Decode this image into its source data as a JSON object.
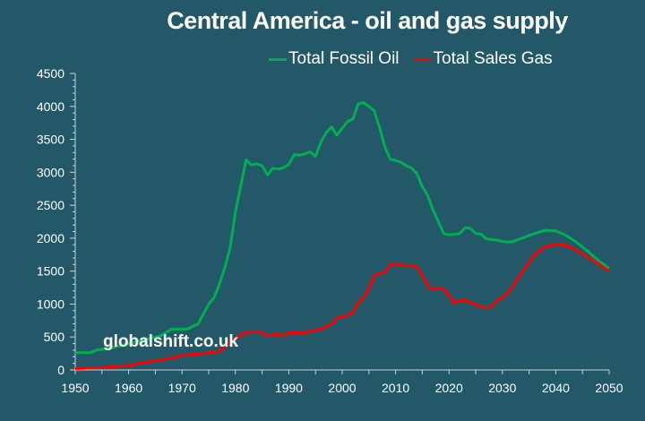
{
  "chart_data": {
    "type": "line",
    "title": "Central America - oil and gas supply",
    "xlabel": "",
    "ylabel": "",
    "xlim": [
      1950,
      2050
    ],
    "ylim": [
      0,
      4500
    ],
    "x_ticks": [
      "1950",
      "1960",
      "1970",
      "1980",
      "1990",
      "2000",
      "2010",
      "2020",
      "2030",
      "2040",
      "2050"
    ],
    "y_ticks": [
      "0",
      "500",
      "1000",
      "1500",
      "2000",
      "2500",
      "3000",
      "3500",
      "4000",
      "4500"
    ],
    "legend_position": "top-right",
    "watermark": "globalshift.co.uk",
    "series": [
      {
        "name": "Total Fossil Oil",
        "color": "#00b050",
        "points": [
          [
            1950,
            260
          ],
          [
            1953,
            265
          ],
          [
            1954,
            300
          ],
          [
            1957,
            340
          ],
          [
            1960,
            400
          ],
          [
            1963,
            460
          ],
          [
            1966,
            520
          ],
          [
            1968,
            620
          ],
          [
            1971,
            620
          ],
          [
            1973,
            700
          ],
          [
            1975,
            1000
          ],
          [
            1976,
            1100
          ],
          [
            1977,
            1300
          ],
          [
            1978,
            1550
          ],
          [
            1979,
            1850
          ],
          [
            1980,
            2400
          ],
          [
            1981,
            2800
          ],
          [
            1982,
            3190
          ],
          [
            1983,
            3110
          ],
          [
            1984,
            3130
          ],
          [
            1985,
            3100
          ],
          [
            1986,
            2960
          ],
          [
            1987,
            3060
          ],
          [
            1988,
            3050
          ],
          [
            1989,
            3070
          ],
          [
            1990,
            3120
          ],
          [
            1991,
            3270
          ],
          [
            1992,
            3260
          ],
          [
            1993,
            3280
          ],
          [
            1994,
            3310
          ],
          [
            1995,
            3240
          ],
          [
            1996,
            3460
          ],
          [
            1997,
            3600
          ],
          [
            1998,
            3690
          ],
          [
            1999,
            3560
          ],
          [
            2000,
            3670
          ],
          [
            2001,
            3770
          ],
          [
            2002,
            3810
          ],
          [
            2003,
            4040
          ],
          [
            2004,
            4060
          ],
          [
            2005,
            4000
          ],
          [
            2006,
            3930
          ],
          [
            2007,
            3680
          ],
          [
            2008,
            3380
          ],
          [
            2009,
            3200
          ],
          [
            2010,
            3180
          ],
          [
            2011,
            3150
          ],
          [
            2012,
            3100
          ],
          [
            2013,
            3060
          ],
          [
            2014,
            2980
          ],
          [
            2015,
            2780
          ],
          [
            2016,
            2650
          ],
          [
            2017,
            2430
          ],
          [
            2018,
            2250
          ],
          [
            2019,
            2070
          ],
          [
            2020,
            2050
          ],
          [
            2021,
            2060
          ],
          [
            2022,
            2070
          ],
          [
            2023,
            2160
          ],
          [
            2024,
            2150
          ],
          [
            2025,
            2070
          ],
          [
            2026,
            2060
          ],
          [
            2027,
            1990
          ],
          [
            2028,
            1980
          ],
          [
            2029,
            1970
          ],
          [
            2030,
            1950
          ],
          [
            2031,
            1940
          ],
          [
            2032,
            1950
          ],
          [
            2034,
            2010
          ],
          [
            2036,
            2070
          ],
          [
            2038,
            2120
          ],
          [
            2040,
            2110
          ],
          [
            2042,
            2040
          ],
          [
            2044,
            1930
          ],
          [
            2046,
            1800
          ],
          [
            2048,
            1660
          ],
          [
            2050,
            1540
          ]
        ]
      },
      {
        "name": "Total Sales Gas",
        "color": "#ff0000",
        "points": [
          [
            1950,
            20
          ],
          [
            1955,
            35
          ],
          [
            1960,
            70
          ],
          [
            1965,
            140
          ],
          [
            1968,
            180
          ],
          [
            1970,
            220
          ],
          [
            1973,
            240
          ],
          [
            1975,
            260
          ],
          [
            1977,
            280
          ],
          [
            1978,
            360
          ],
          [
            1980,
            480
          ],
          [
            1982,
            570
          ],
          [
            1984,
            580
          ],
          [
            1985,
            560
          ],
          [
            1986,
            520
          ],
          [
            1988,
            540
          ],
          [
            1989,
            520
          ],
          [
            1990,
            560
          ],
          [
            1992,
            570
          ],
          [
            1993,
            550
          ],
          [
            1994,
            590
          ],
          [
            1996,
            620
          ],
          [
            1998,
            700
          ],
          [
            1999,
            790
          ],
          [
            2001,
            830
          ],
          [
            2002,
            870
          ],
          [
            2003,
            1030
          ],
          [
            2004,
            1100
          ],
          [
            2005,
            1230
          ],
          [
            2006,
            1430
          ],
          [
            2007,
            1470
          ],
          [
            2008,
            1480
          ],
          [
            2009,
            1600
          ],
          [
            2010,
            1610
          ],
          [
            2012,
            1580
          ],
          [
            2013,
            1590
          ],
          [
            2014,
            1560
          ],
          [
            2015,
            1430
          ],
          [
            2016,
            1290
          ],
          [
            2017,
            1220
          ],
          [
            2018,
            1240
          ],
          [
            2019,
            1230
          ],
          [
            2020,
            1130
          ],
          [
            2021,
            1020
          ],
          [
            2022,
            1050
          ],
          [
            2023,
            1060
          ],
          [
            2025,
            990
          ],
          [
            2026,
            960
          ],
          [
            2027,
            950
          ],
          [
            2028,
            960
          ],
          [
            2029,
            1060
          ],
          [
            2030,
            1100
          ],
          [
            2031,
            1170
          ],
          [
            2032,
            1280
          ],
          [
            2034,
            1520
          ],
          [
            2036,
            1750
          ],
          [
            2038,
            1870
          ],
          [
            2040,
            1910
          ],
          [
            2042,
            1890
          ],
          [
            2044,
            1810
          ],
          [
            2046,
            1710
          ],
          [
            2048,
            1610
          ],
          [
            2050,
            1500
          ]
        ]
      }
    ]
  },
  "colors": {
    "background": "#225868",
    "axis": "#c8d4d8",
    "text": "#ffffff"
  }
}
